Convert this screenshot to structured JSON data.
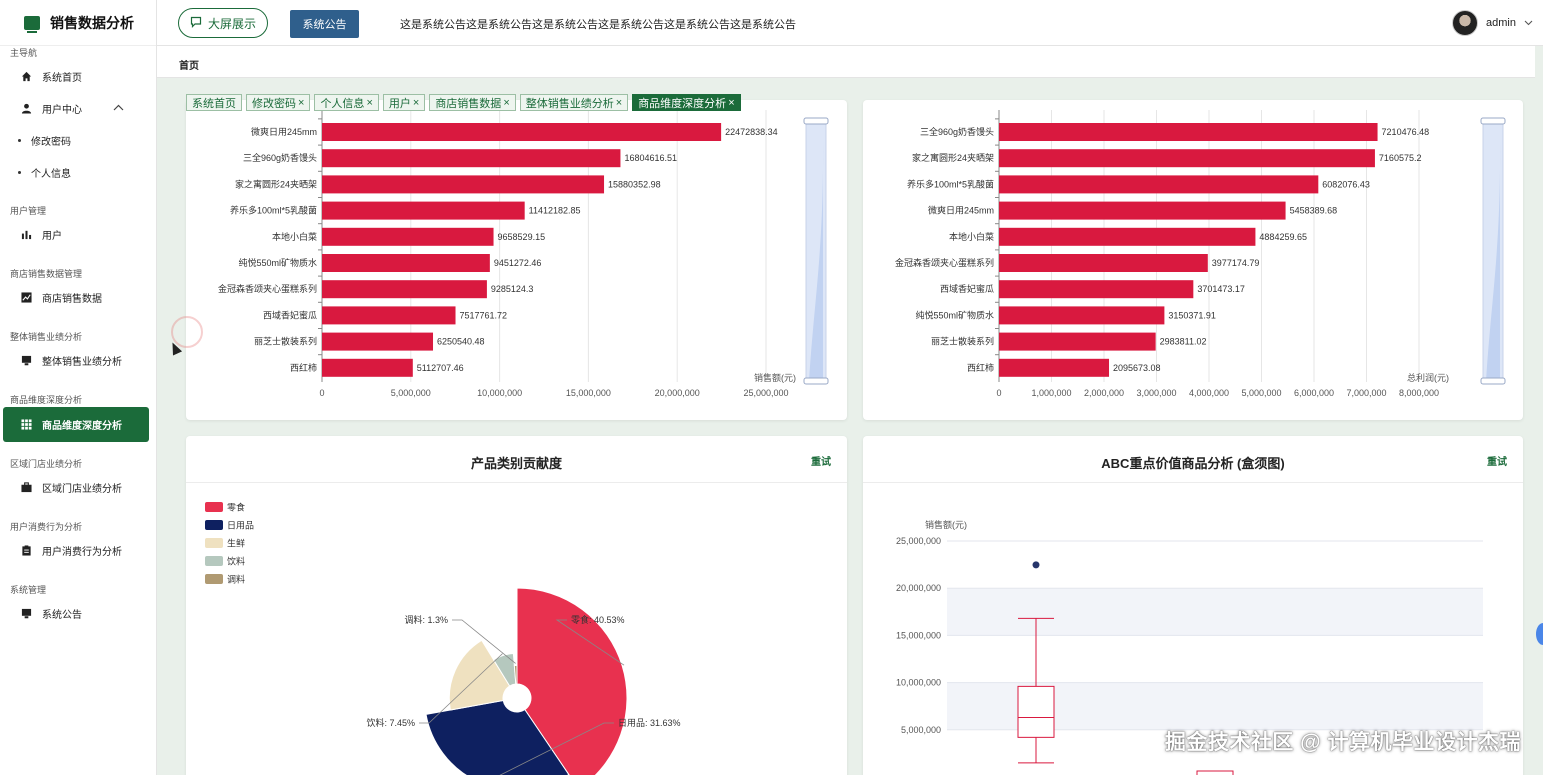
{
  "brand": {
    "title": "销售数据分析"
  },
  "sidebar": {
    "groups": [
      {
        "title": "主导航",
        "items": [
          {
            "label": "系统首页",
            "icon": "home-icon"
          },
          {
            "label": "用户中心",
            "icon": "user-icon",
            "expanded": true,
            "children": [
              "修改密码",
              "个人信息"
            ]
          }
        ]
      },
      {
        "title": "用户管理",
        "items": [
          {
            "label": "用户",
            "icon": "bar-chart-icon"
          }
        ]
      },
      {
        "title": "商店销售数据管理",
        "items": [
          {
            "label": "商店销售数据",
            "icon": "line-chart-icon"
          }
        ]
      },
      {
        "title": "整体销售业绩分析",
        "items": [
          {
            "label": "整体销售业绩分析",
            "icon": "monitor-icon"
          }
        ]
      },
      {
        "title": "商品维度深度分析",
        "items": [
          {
            "label": "商品维度深度分析",
            "icon": "grid-icon",
            "active": true
          }
        ]
      },
      {
        "title": "区域门店业绩分析",
        "items": [
          {
            "label": "区域门店业绩分析",
            "icon": "briefcase-icon"
          }
        ]
      },
      {
        "title": "用户消费行为分析",
        "items": [
          {
            "label": "用户消费行为分析",
            "icon": "clipboard-icon"
          }
        ]
      },
      {
        "title": "系统管理",
        "items": [
          {
            "label": "系统公告",
            "icon": "monitor-icon"
          }
        ]
      }
    ]
  },
  "topbar": {
    "big_screen_label": "大屏展示",
    "notice_button_label": "系统公告",
    "notice_text": "这是系统公告这是系统公告这是系统公告这是系统公告这是系统公告这是系统公告",
    "username": "admin"
  },
  "breadcrumb": "首页",
  "tabs": [
    {
      "label": "系统首页",
      "closable": false
    },
    {
      "label": "修改密码",
      "closable": true
    },
    {
      "label": "个人信息",
      "closable": true
    },
    {
      "label": "用户",
      "closable": true
    },
    {
      "label": "商店销售数据",
      "closable": true
    },
    {
      "label": "整体销售业绩分析",
      "closable": true
    },
    {
      "label": "商品维度深度分析",
      "closable": true,
      "active": true
    }
  ],
  "cards": {
    "pie_title": "产品类别贡献度",
    "box_title": "ABC重点价值商品分析 (盒须图)",
    "retry_label": "重试"
  },
  "chart_data": [
    {
      "type": "bar",
      "orientation": "horizontal",
      "categories": [
        "微爽日用245mm",
        "三全960g奶香馒头",
        "家之寓圆形24夹晒架",
        "养乐多100ml*5乳酸菌",
        "本地小白菜",
        "纯悦550ml矿物质水",
        "金冠森香颂夹心蛋糕系列",
        "西域香妃蜜瓜",
        "丽芝士散装系列",
        "西红柿"
      ],
      "values": [
        22472838.34,
        16804616.51,
        15880352.98,
        11412182.85,
        9658529.15,
        9451272.46,
        9285124.3,
        7517761.72,
        6250540.48,
        5112707.46
      ],
      "value_labels": [
        "22472838.34",
        "16804616.51",
        "15880352.98",
        "11412182.85",
        "9658529.15",
        "9451272.46",
        "9285124.3",
        "7517761.72",
        "6250540.48",
        "5112707.46"
      ],
      "xlabel": "销售额(元)",
      "xticks": [
        "0",
        "5,000,000",
        "10,000,000",
        "15,000,000",
        "20,000,000",
        "25,000,000"
      ],
      "xlim": [
        0,
        25000000
      ],
      "color": "#d9193f"
    },
    {
      "type": "bar",
      "orientation": "horizontal",
      "categories": [
        "三全960g奶香馒头",
        "家之寓圆形24夹晒架",
        "养乐多100ml*5乳酸菌",
        "微爽日用245mm",
        "本地小白菜",
        "金冠森香颂夹心蛋糕系列",
        "西域香妃蜜瓜",
        "纯悦550ml矿物质水",
        "丽芝士散装系列",
        "西红柿"
      ],
      "values": [
        7210476.48,
        7160575.2,
        6082076.43,
        5458389.68,
        4884259.65,
        3977174.79,
        3701473.17,
        3150371.91,
        2983811.02,
        2095673.08
      ],
      "value_labels": [
        "7210476.48",
        "7160575.2",
        "6082076.43",
        "5458389.68",
        "4884259.65",
        "3977174.79",
        "3701473.17",
        "3150371.91",
        "2983811.02",
        "2095673.08"
      ],
      "xlabel": "总利润(元)",
      "xticks": [
        "0",
        "1,000,000",
        "2,000,000",
        "3,000,000",
        "4,000,000",
        "5,000,000",
        "6,000,000",
        "7,000,000",
        "8,000,000"
      ],
      "xlim": [
        0,
        8000000
      ],
      "color": "#d9193f"
    },
    {
      "type": "pie",
      "variant": "rose",
      "legend": [
        "零食",
        "日用品",
        "生鲜",
        "饮料",
        "调料"
      ],
      "legend_position": "top-left",
      "values": [
        40.53,
        31.63,
        19.09,
        7.45,
        1.3
      ],
      "visible_labels": [
        {
          "name": "零食",
          "text": "零食: 40.53%"
        },
        {
          "name": "日用品",
          "text": "日用品: 31.63%"
        },
        {
          "name": "饮料",
          "text": "饮料: 7.45%"
        },
        {
          "name": "调料",
          "text": "调料: 1.3%"
        }
      ],
      "colors": [
        "#e8314f",
        "#0e2060",
        "#efe1c0",
        "#b5c8be",
        "#b09a72"
      ]
    },
    {
      "type": "boxplot",
      "ylabel": "销售额(元)",
      "yticks": [
        "25,000,000",
        "20,000,000",
        "15,000,000",
        "10,000,000",
        "5,000,000"
      ],
      "ylim": [
        0,
        25000000
      ],
      "box": {
        "min": 1500000,
        "q1": 4200000,
        "median": 6300000,
        "q3": 9600000,
        "max": 16800000
      },
      "outliers": [
        22470000
      ],
      "color": "#d9193f"
    }
  ]
}
